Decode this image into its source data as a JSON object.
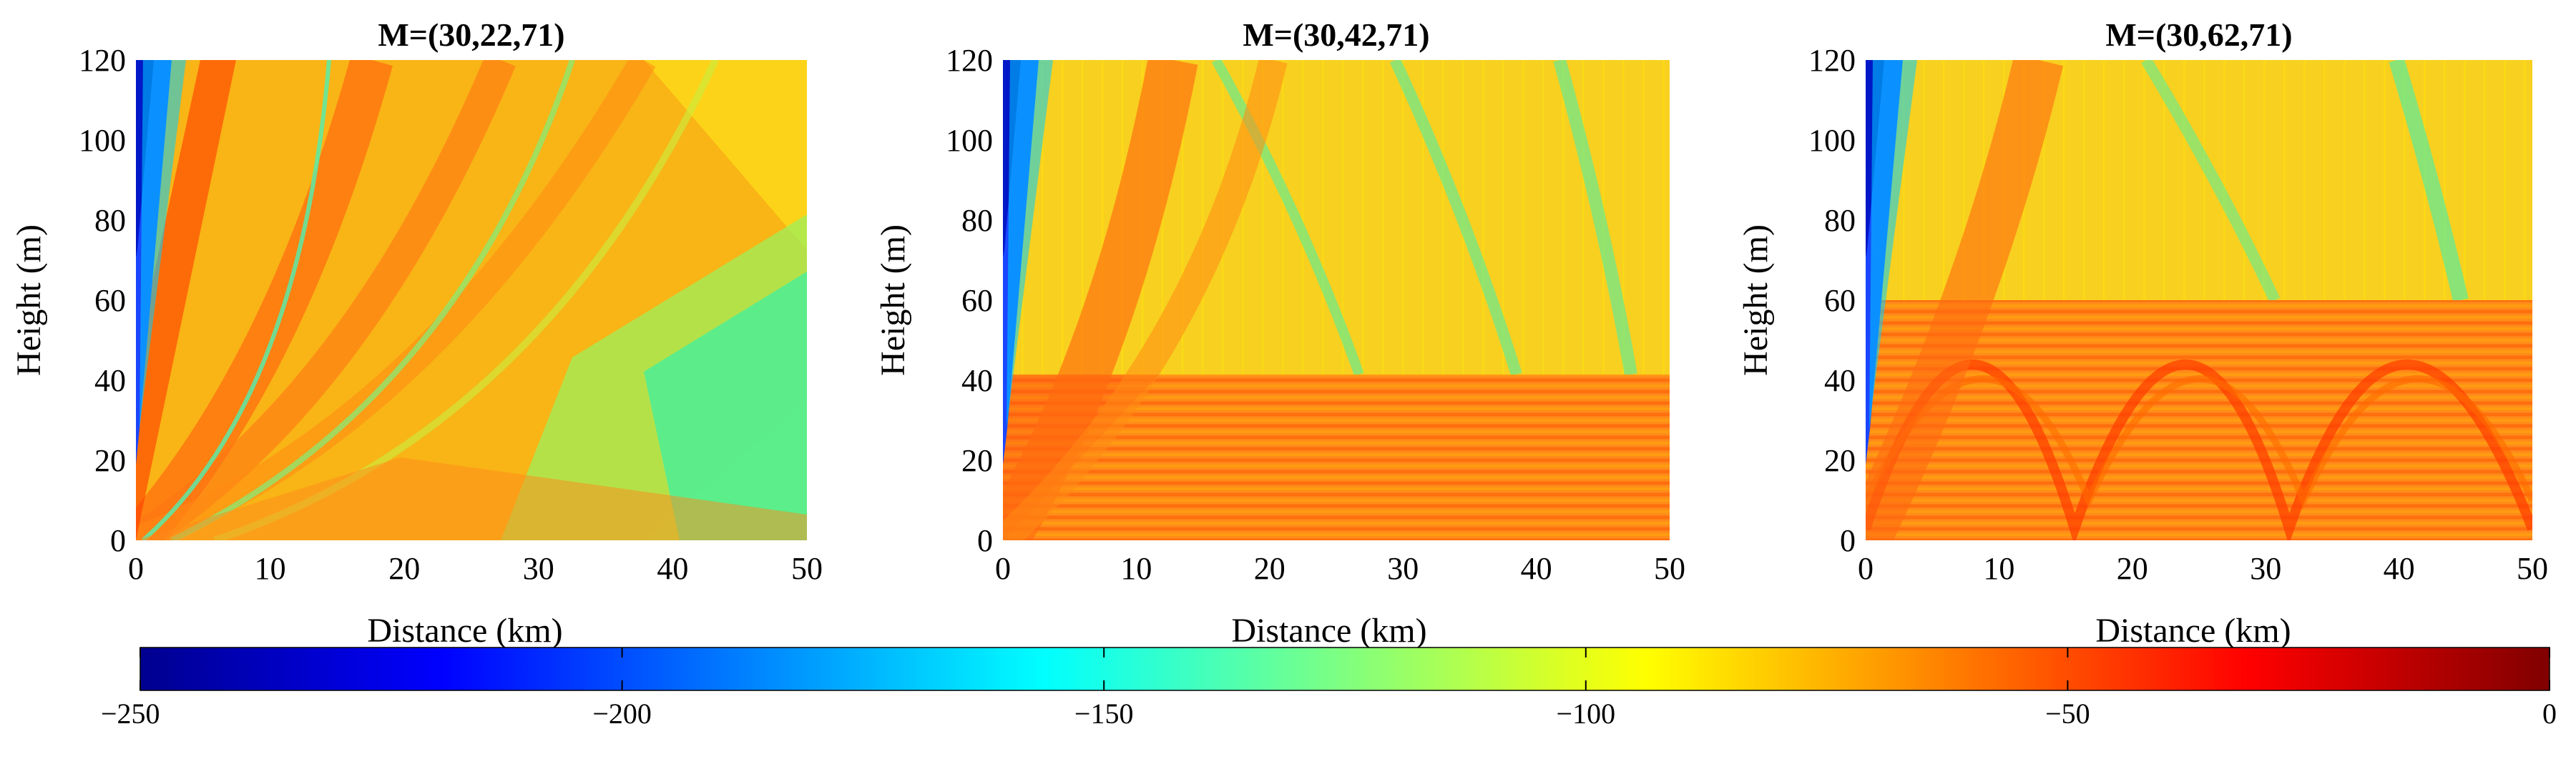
{
  "chart_data": [
    {
      "type": "heatmap",
      "title": "M=(30,22,71)",
      "duct_height": 22,
      "xlabel": "Distance (km)",
      "ylabel": "Height (m)",
      "xlim": [
        0,
        50
      ],
      "ylim": [
        0,
        120
      ],
      "xticks": [
        "0",
        "10",
        "20",
        "30",
        "40",
        "50"
      ],
      "yticks": [
        "0",
        "20",
        "40",
        "60",
        "80",
        "100",
        "120"
      ]
    },
    {
      "type": "heatmap",
      "title": "M=(30,42,71)",
      "duct_height": 42,
      "xlabel": "Distance (km)",
      "ylabel": "Height (m)",
      "xlim": [
        0,
        50
      ],
      "ylim": [
        0,
        120
      ],
      "xticks": [
        "0",
        "10",
        "20",
        "30",
        "40",
        "50"
      ],
      "yticks": [
        "0",
        "20",
        "40",
        "60",
        "80",
        "100",
        "120"
      ]
    },
    {
      "type": "heatmap",
      "title": "M=(30,62,71)",
      "duct_height": 62,
      "xlabel": "Distance (km)",
      "ylabel": "Height (m)",
      "xlim": [
        0,
        50
      ],
      "ylim": [
        0,
        120
      ],
      "xticks": [
        "0",
        "10",
        "20",
        "30",
        "40",
        "50"
      ],
      "yticks": [
        "0",
        "20",
        "40",
        "60",
        "80",
        "100",
        "120"
      ]
    }
  ],
  "colorbar": {
    "range": [
      -250,
      0
    ],
    "tick_labels": [
      "−250",
      "−200",
      "−150",
      "−100",
      "−50",
      "0"
    ],
    "tick_values": [
      -250,
      -200,
      -150,
      -100,
      -50,
      0
    ],
    "colormap": "jet"
  }
}
